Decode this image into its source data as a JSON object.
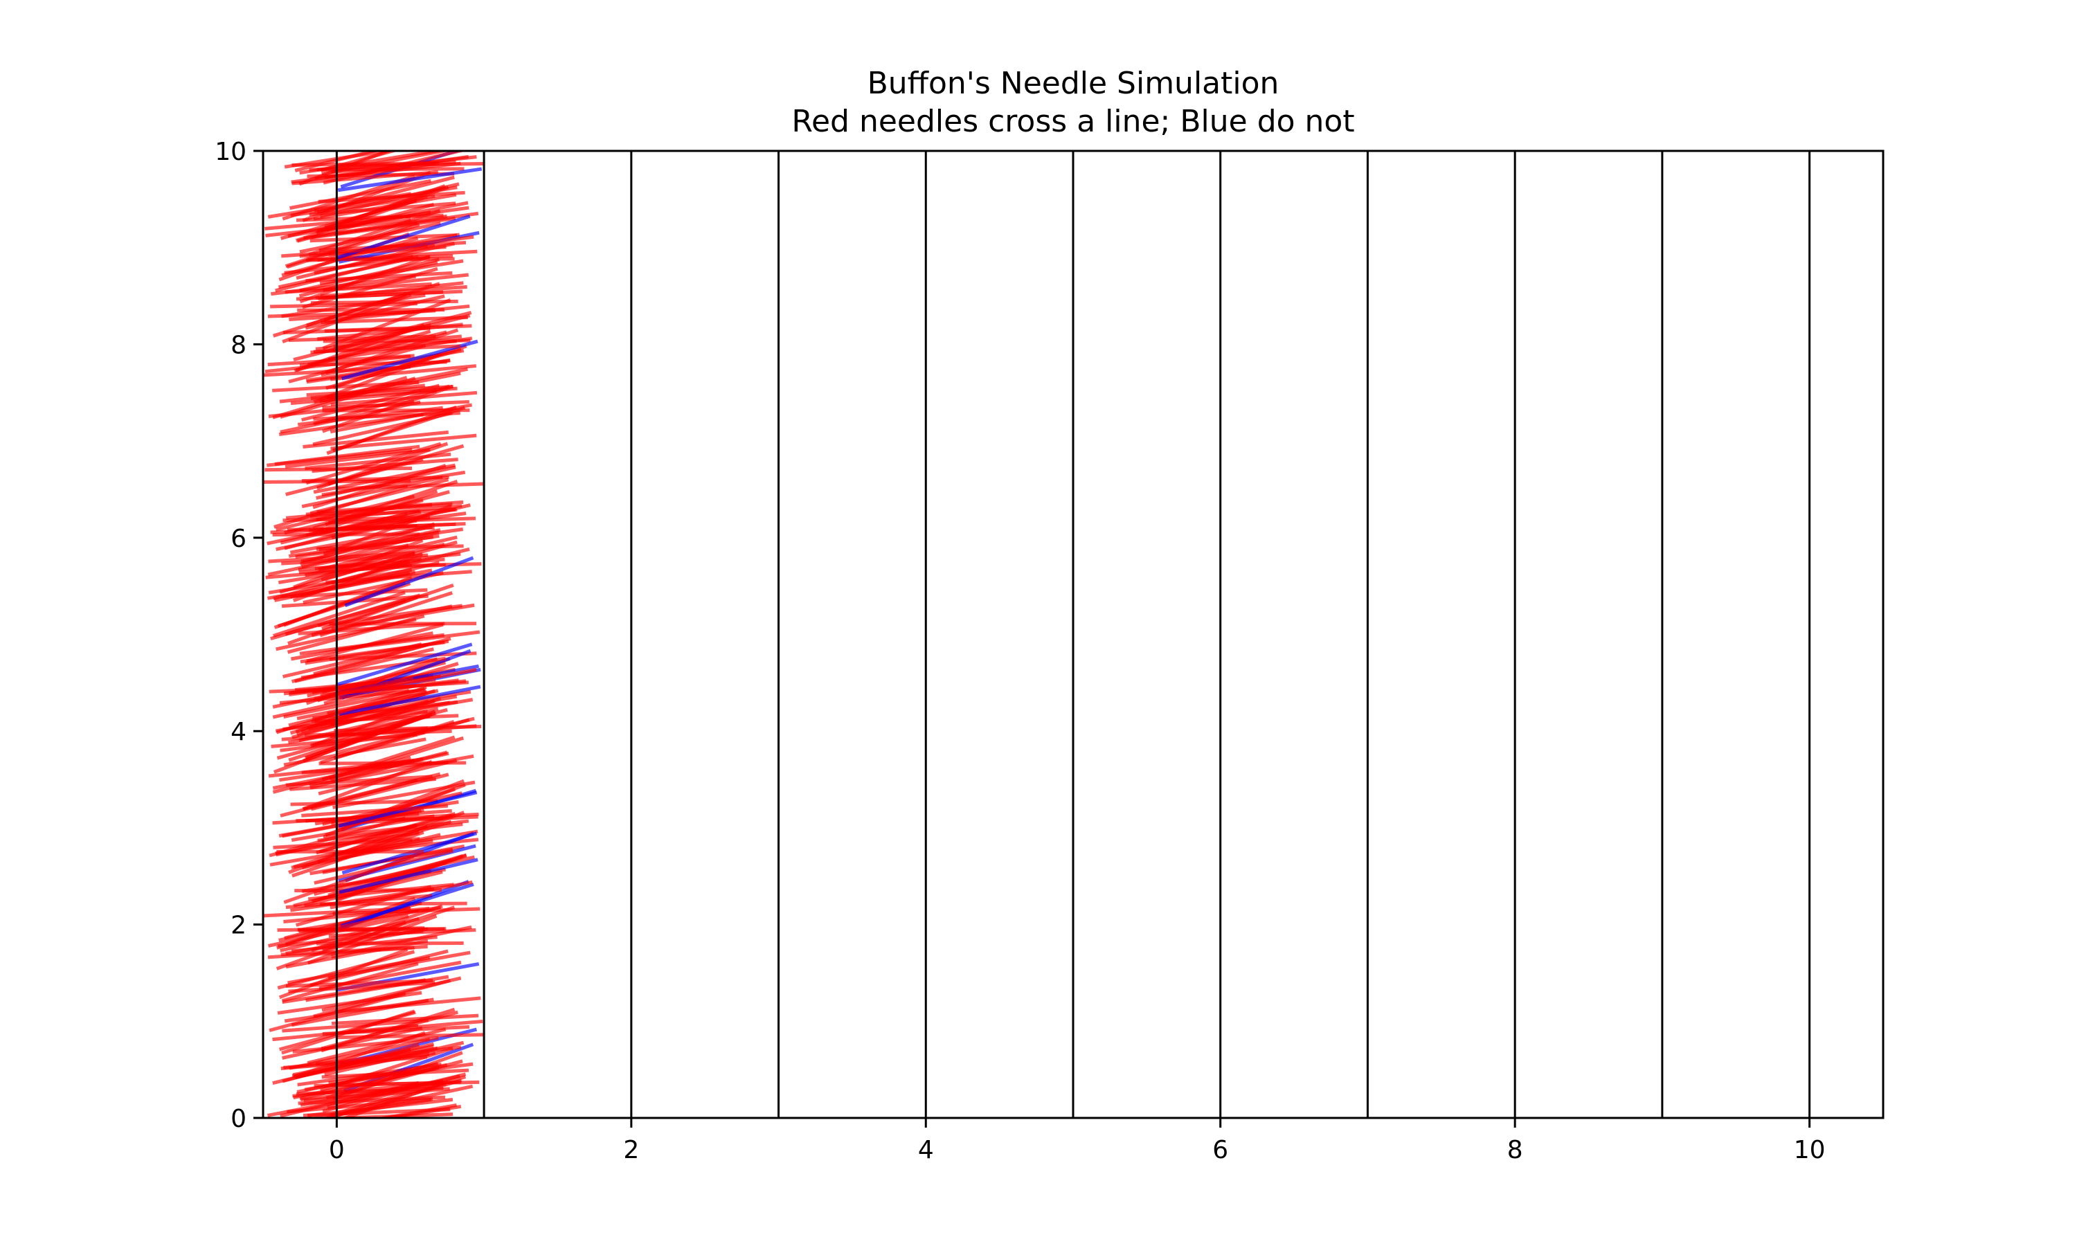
{
  "chart_data": {
    "type": "line",
    "title": "Buffon's Needle Simulation",
    "subtitle": "Red needles cross a line; Blue do not",
    "xlabel": "",
    "ylabel": "",
    "xlim": [
      -0.5,
      10.5
    ],
    "ylim": [
      0,
      10
    ],
    "x_ticks": [
      "0",
      "2",
      "4",
      "6",
      "8",
      "10"
    ],
    "y_ticks": [
      "0",
      "2",
      "4",
      "6",
      "8",
      "10"
    ],
    "grid": false,
    "legend": "none",
    "vertical_lines_x": [
      0,
      1,
      2,
      3,
      4,
      5,
      6,
      7,
      8,
      9,
      10
    ],
    "needle_length": 1,
    "needle_center_x_range": [
      0,
      0.5
    ],
    "needle_center_y_range": [
      0,
      10
    ],
    "needle_angle_range_deg": [
      0,
      30
    ],
    "needle_count_approx": 500,
    "series": [
      {
        "color": "#ff0000",
        "value": "crosses a line"
      },
      {
        "color": "#0000ff",
        "value": "does not cross"
      }
    ]
  }
}
